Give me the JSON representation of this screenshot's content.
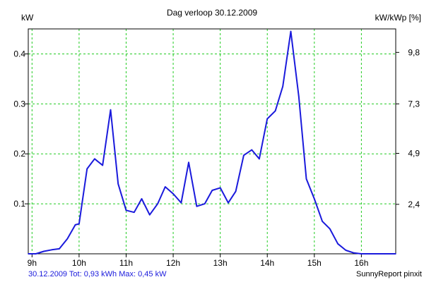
{
  "chart_data": {
    "type": "line",
    "title": "Dag  verloop 30.12.2009",
    "ylabel_left": "kW",
    "ylabel_right": "kW/kWp [%]",
    "xlim": [
      8.92,
      16.73
    ],
    "ylim": [
      0,
      0.45
    ],
    "x_ticks": [
      9,
      10,
      11,
      12,
      13,
      14,
      15,
      16
    ],
    "x_tick_labels": [
      "9h",
      "10h",
      "11h",
      "12h",
      "13h",
      "14h",
      "15h",
      "16h"
    ],
    "y_ticks_left": [
      0.1,
      0.2,
      0.3,
      0.4
    ],
    "y_tick_labels_left": [
      "0.1",
      "0.2",
      "0.3",
      "0.4"
    ],
    "y_ticks_right": [
      0.099,
      0.201,
      0.3,
      0.403
    ],
    "y_tick_labels_right": [
      "2,4",
      "4,9",
      "7,3",
      "9,8"
    ],
    "grid": true,
    "series": [
      {
        "x": [
          8.92,
          9.08,
          9.25,
          9.42,
          9.58,
          9.75,
          9.92,
          10.0,
          10.17,
          10.33,
          10.5,
          10.67,
          10.83,
          11.0,
          11.17,
          11.33,
          11.5,
          11.67,
          11.83,
          12.0,
          12.17,
          12.33,
          12.5,
          12.67,
          12.83,
          13.0,
          13.17,
          13.33,
          13.5,
          13.67,
          13.83,
          14.0,
          14.17,
          14.33,
          14.5,
          14.67,
          14.83,
          15.0,
          15.17,
          15.33,
          15.5,
          15.67,
          15.83,
          16.0,
          16.17,
          16.33,
          16.5,
          16.73
        ],
        "y": [
          0.0,
          0.0,
          0.005,
          0.008,
          0.01,
          0.03,
          0.058,
          0.06,
          0.17,
          0.19,
          0.177,
          0.288,
          0.14,
          0.087,
          0.083,
          0.11,
          0.078,
          0.1,
          0.134,
          0.12,
          0.102,
          0.183,
          0.095,
          0.1,
          0.127,
          0.132,
          0.102,
          0.125,
          0.197,
          0.208,
          0.19,
          0.27,
          0.286,
          0.335,
          0.445,
          0.315,
          0.15,
          0.11,
          0.065,
          0.05,
          0.02,
          0.007,
          0.002,
          0.0,
          0.0,
          0.0,
          0.0,
          0.0
        ]
      }
    ],
    "colors": {
      "line": "#1a1adc",
      "grid": "#22cc22",
      "axis": "#000000"
    }
  },
  "footer": {
    "summary": "30.12.2009 Tot: 0,93 kWh Max: 0,45 kW",
    "credit": "SunnyReport pinxit"
  }
}
